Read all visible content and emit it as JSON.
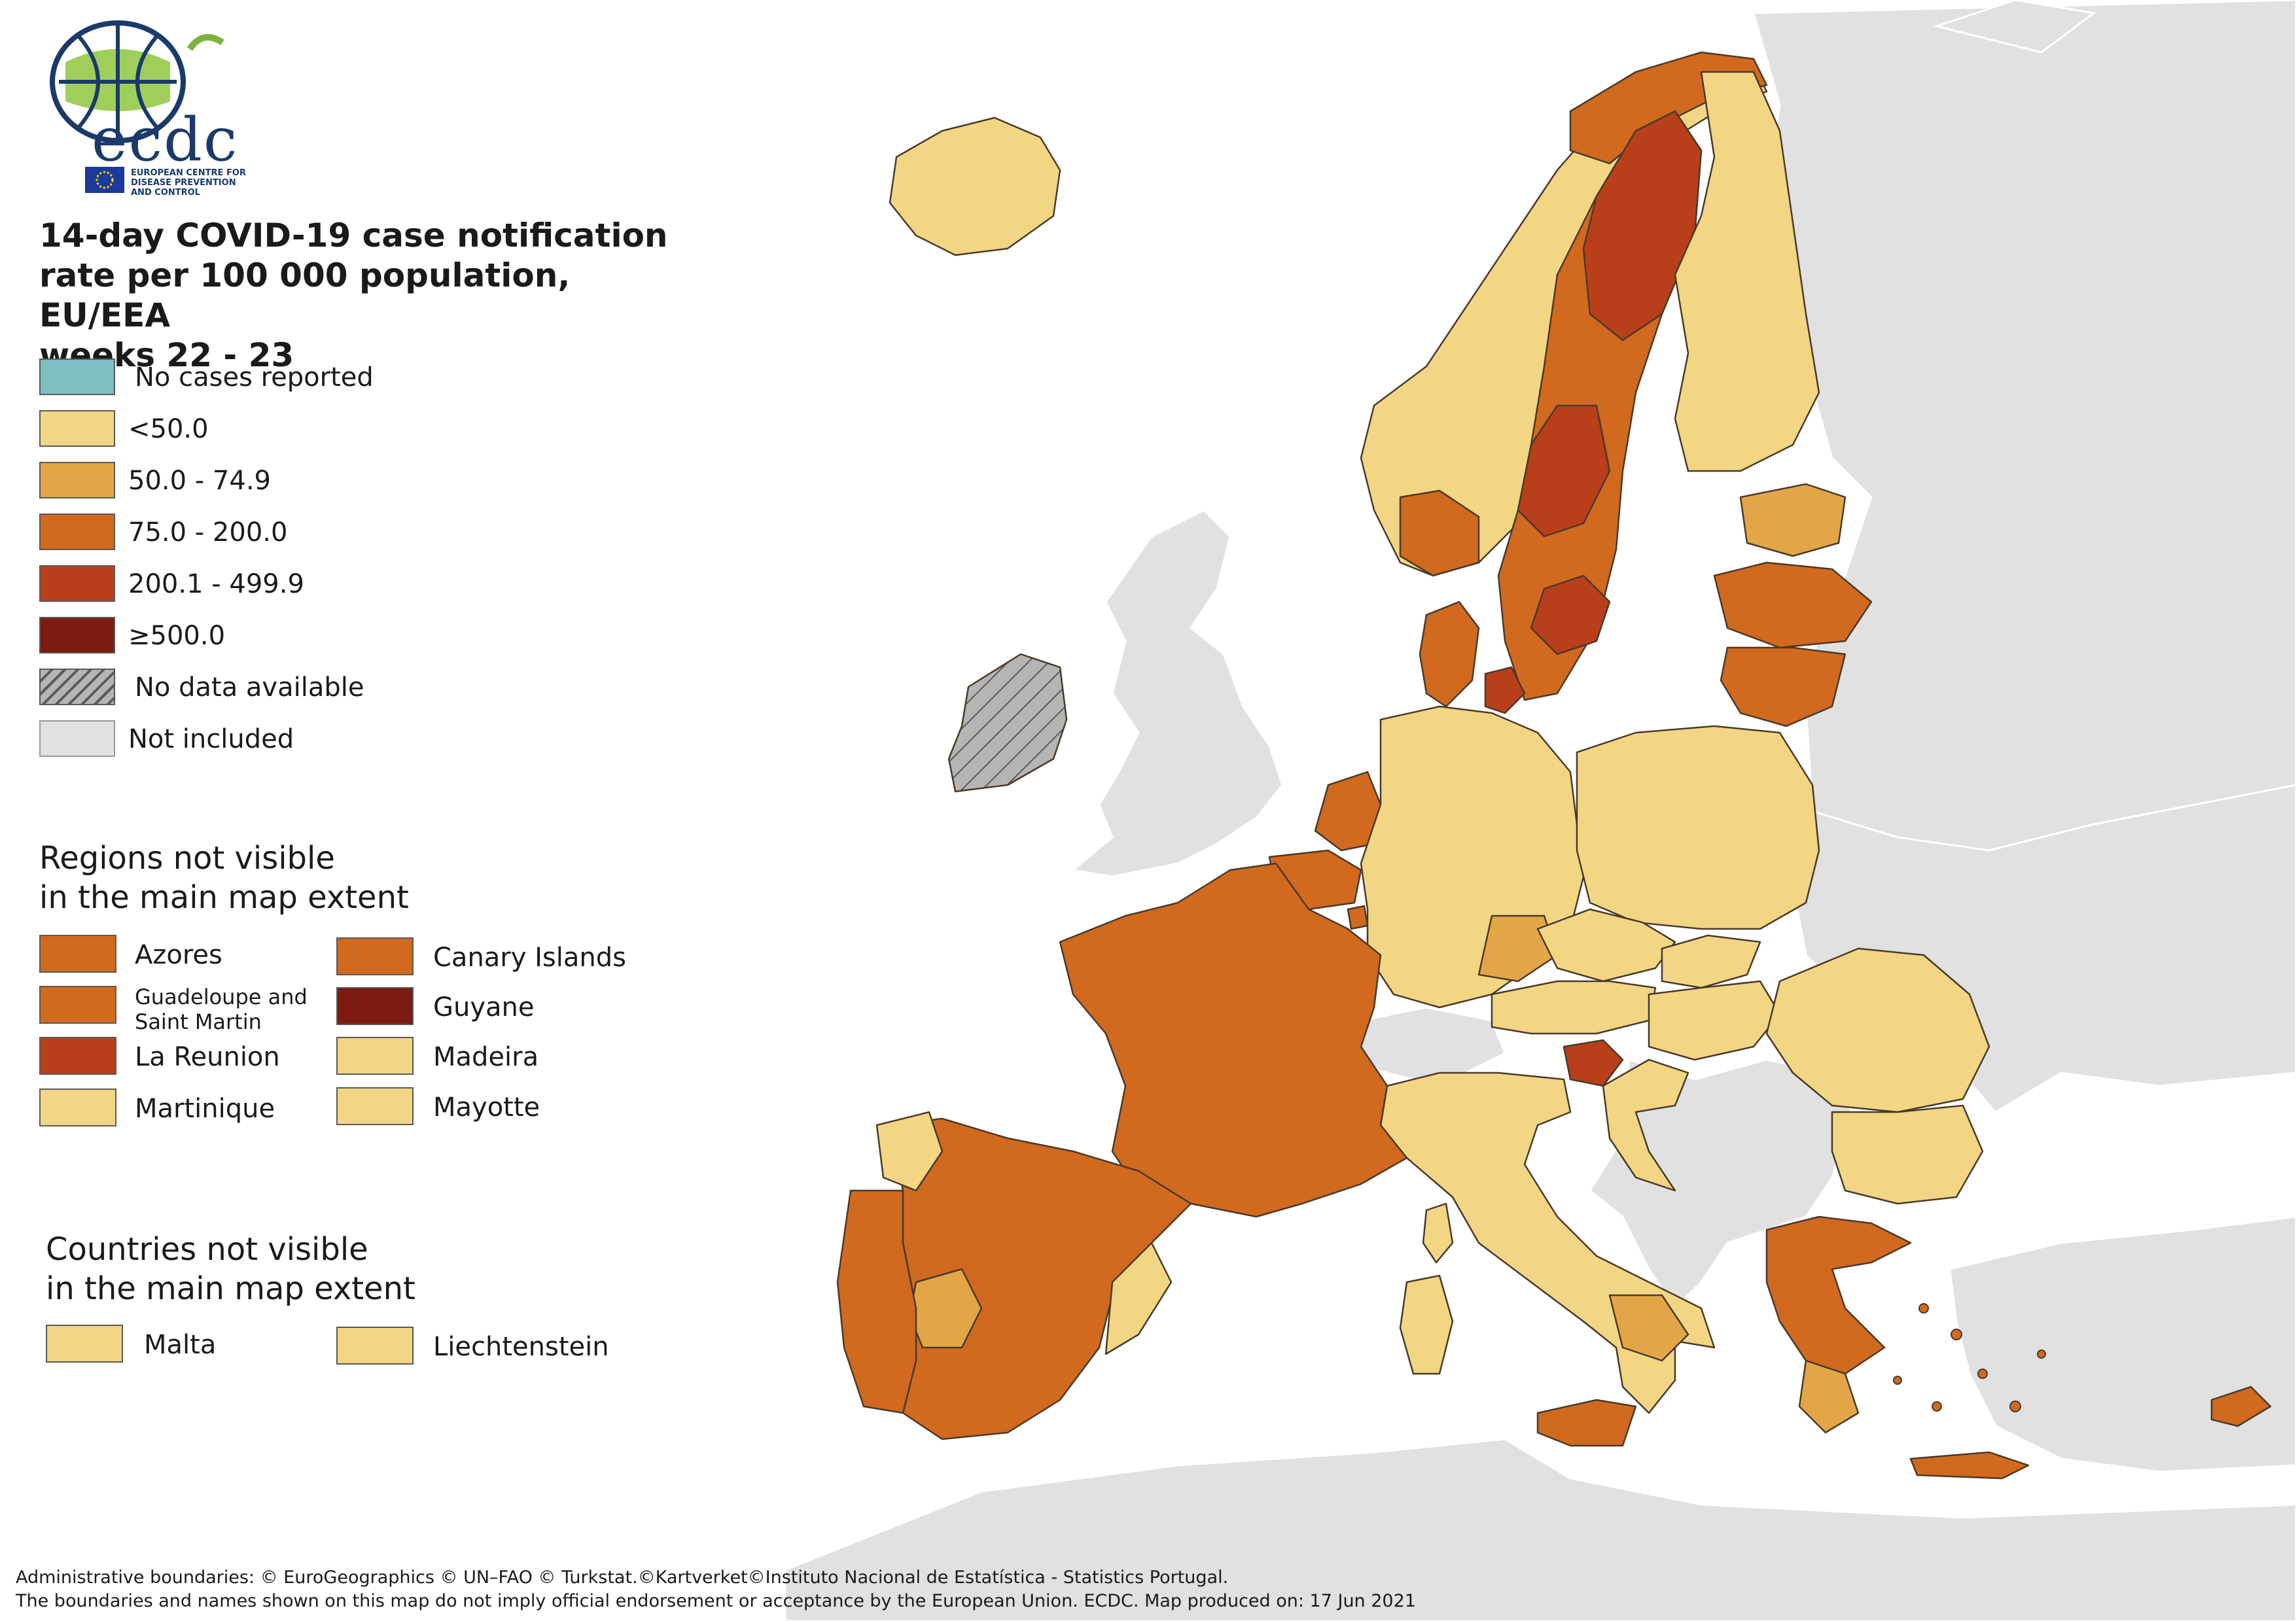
{
  "organisation": {
    "acronym": "ecdc",
    "full_name_line1": "EUROPEAN CENTRE FOR",
    "full_name_line2": "DISEASE PREVENTION",
    "full_name_line3": "AND CONTROL"
  },
  "title": {
    "line1": "14-day COVID-19 case notification",
    "line2": "rate per 100 000 population, EU/EEA",
    "line3": "weeks 22 - 23"
  },
  "legend": [
    {
      "label": "No cases reported",
      "color": "#7fbfc4",
      "pattern": "solid"
    },
    {
      "label": "<50.0",
      "color": "#f3d684",
      "pattern": "solid"
    },
    {
      "label": "50.0 - 74.9",
      "color": "#e3a647",
      "pattern": "solid"
    },
    {
      "label": "75.0 - 200.0",
      "color": "#d1691f",
      "pattern": "solid"
    },
    {
      "label": "200.1 - 499.9",
      "color": "#b93e1a",
      "pattern": "solid"
    },
    {
      "label": "≥500.0",
      "color": "#7d1a12",
      "pattern": "solid"
    },
    {
      "label": "No data available",
      "color": "#b5b5b5",
      "pattern": "hatched"
    },
    {
      "label": "Not included",
      "color": "#e1e1e1",
      "pattern": "solid"
    }
  ],
  "regions_not_visible": {
    "title_line1": "Regions not visible",
    "title_line2": "in the main map extent",
    "items": [
      {
        "label": "Azores",
        "color": "#d1691f"
      },
      {
        "label": "Canary Islands",
        "color": "#d1691f"
      },
      {
        "label": "Guadeloupe and Saint Martin",
        "color": "#d1691f"
      },
      {
        "label": "Guyane",
        "color": "#7d1a12"
      },
      {
        "label": "La Reunion",
        "color": "#b93e1a"
      },
      {
        "label": "Madeira",
        "color": "#f3d684"
      },
      {
        "label": "Martinique",
        "color": "#f3d684"
      },
      {
        "label": "Mayotte",
        "color": "#f3d684"
      }
    ]
  },
  "countries_not_visible": {
    "title_line1": "Countries not visible",
    "title_line2": "in the main map extent",
    "items": [
      {
        "label": "Malta",
        "color": "#f3d684"
      },
      {
        "label": "Liechtenstein",
        "color": "#f3d684"
      }
    ]
  },
  "footer": {
    "line1": "Administrative boundaries: © EuroGeographics © UN–FAO © Turkstat.©Kartverket©Instituto Nacional de Estatística - Statistics Portugal.",
    "line2": "The boundaries and names shown on this map do not imply official endorsement or acceptance by the European Union. ECDC. Map produced on: 17 Jun 2021"
  },
  "colors": {
    "not_included": "#e1e1e1",
    "lt50": "#f3d684",
    "r50_75": "#e3a647",
    "r75_200": "#d1691f",
    "r200_500": "#b93e1a",
    "r500": "#7d1a12",
    "no_data": "#b5b5b5",
    "border": "#5a4a3a"
  }
}
